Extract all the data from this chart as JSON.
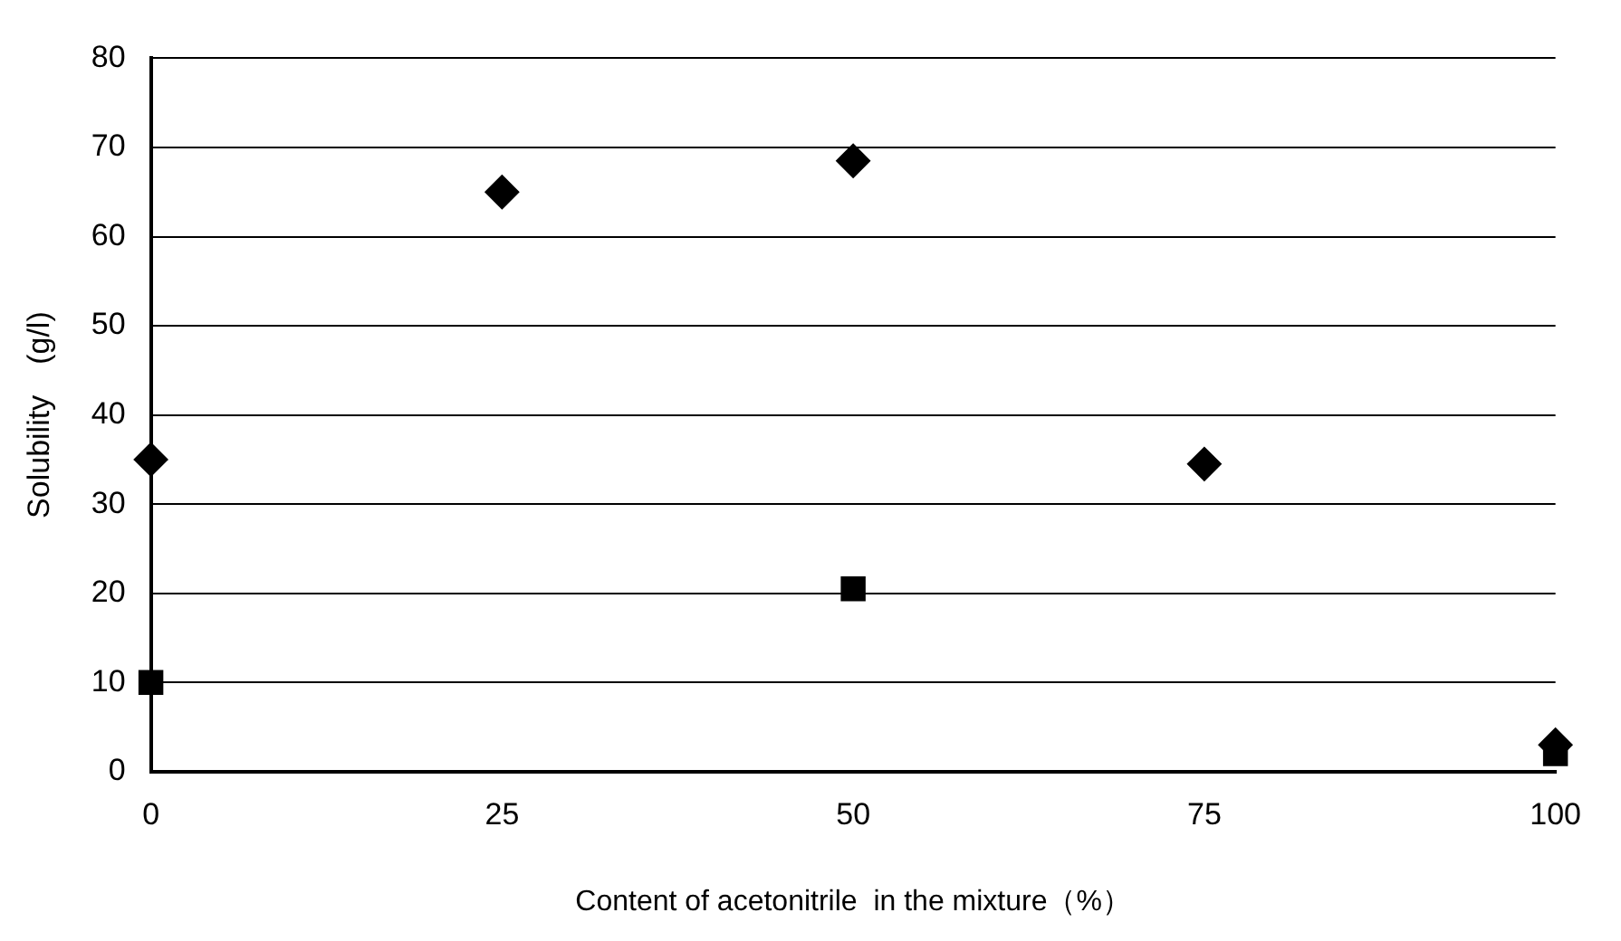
{
  "chart_data": {
    "type": "scatter",
    "xlabel": "Content of acetonitrile  in the mixture（%）",
    "ylabel": "Solubility　(g/l)",
    "x": [
      0,
      25,
      50,
      75,
      100
    ],
    "xlim": [
      0,
      100
    ],
    "xticks": [
      0,
      25,
      50,
      75,
      100
    ],
    "ylim": [
      0,
      80
    ],
    "yticks": [
      0,
      10,
      20,
      30,
      40,
      50,
      60,
      70,
      80
    ],
    "grid": "y",
    "legend": false,
    "series": [
      {
        "color": "#000000",
        "marker": "diamond",
        "values": [
          35,
          65,
          68.5,
          34.5,
          3
        ]
      },
      {
        "color": "#000000",
        "marker": "square",
        "x": [
          0,
          50,
          100
        ],
        "values": [
          10,
          20.5,
          2
        ]
      }
    ]
  }
}
